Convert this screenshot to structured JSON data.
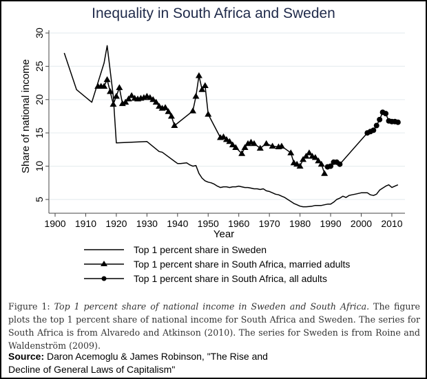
{
  "chart_data": {
    "type": "line",
    "title": "Inequality in South Africa and Sweden",
    "xlabel": "Year",
    "ylabel": "Share of national income",
    "xlim": [
      1898,
      2014
    ],
    "ylim": [
      3,
      31
    ],
    "xticks": [
      1900,
      1910,
      1920,
      1930,
      1940,
      1950,
      1960,
      1970,
      1980,
      1990,
      2000,
      2010
    ],
    "yticks": [
      5,
      10,
      15,
      20,
      25,
      30
    ],
    "grid": true,
    "legend_position": "bottom",
    "series": [
      {
        "name": "Top 1 percent share in Sweden",
        "marker": "none",
        "x": [
          1903,
          1907,
          1912,
          1916,
          1917,
          1919,
          1920,
          1930,
          1934,
          1935,
          1940,
          1941,
          1943,
          1944,
          1945,
          1946,
          1947,
          1948,
          1949,
          1950,
          1951,
          1952,
          1953,
          1954,
          1955,
          1956,
          1957,
          1958,
          1959,
          1960,
          1961,
          1962,
          1963,
          1964,
          1965,
          1966,
          1967,
          1968,
          1969,
          1970,
          1971,
          1972,
          1973,
          1974,
          1975,
          1976,
          1977,
          1978,
          1979,
          1980,
          1981,
          1982,
          1983,
          1984,
          1985,
          1986,
          1987,
          1988,
          1989,
          1990,
          1991,
          1992,
          1993,
          1994,
          1995,
          1996,
          1997,
          1998,
          1999,
          2000,
          2001,
          2002,
          2003,
          2004,
          2005,
          2006,
          2007,
          2008,
          2009,
          2010,
          2011,
          2012
        ],
        "y": [
          27,
          21.5,
          19.6,
          25.5,
          28.1,
          20.5,
          13.5,
          13.7,
          12.2,
          12.1,
          10.4,
          10.4,
          10.5,
          10.2,
          10.0,
          10.1,
          8.9,
          8.2,
          7.8,
          7.6,
          7.5,
          7.3,
          7.0,
          6.8,
          6.9,
          6.9,
          6.8,
          6.9,
          6.9,
          7.0,
          6.9,
          6.8,
          6.8,
          6.7,
          6.6,
          6.6,
          6.5,
          6.6,
          6.3,
          6.2,
          6.0,
          5.8,
          5.7,
          5.5,
          5.3,
          5.0,
          4.7,
          4.4,
          4.2,
          4.0,
          3.9,
          3.9,
          3.95,
          4.0,
          4.1,
          4.1,
          4.1,
          4.2,
          4.3,
          4.3,
          4.6,
          5.0,
          5.2,
          5.5,
          5.3,
          5.6,
          5.7,
          5.8,
          5.9,
          6.0,
          6.0,
          6.0,
          5.7,
          5.6,
          5.8,
          6.4,
          6.7,
          7.0,
          7.2,
          6.8,
          7.0,
          7.2
        ]
      },
      {
        "name": "Top 1 percent share in South Africa, married adults",
        "marker": "triangle",
        "x": [
          1914,
          1915,
          1916,
          1917,
          1918,
          1919,
          1920,
          1921,
          1922,
          1923,
          1924,
          1925,
          1926,
          1927,
          1928,
          1929,
          1930,
          1931,
          1932,
          1933,
          1934,
          1935,
          1936,
          1937,
          1938,
          1939,
          1945,
          1946,
          1947,
          1948,
          1949,
          1950,
          1954,
          1955,
          1956,
          1957,
          1958,
          1959,
          1961,
          1962,
          1963,
          1964,
          1965,
          1967,
          1969,
          1971,
          1973,
          1974,
          1977,
          1978,
          1979,
          1980,
          1981,
          1982,
          1983,
          1984,
          1985,
          1986,
          1987,
          1988
        ],
        "y": [
          22,
          22,
          22,
          23,
          21.2,
          19.3,
          20.5,
          21.8,
          19.4,
          19.6,
          20.1,
          20.6,
          20.2,
          20.1,
          20.2,
          20.3,
          20.5,
          20.3,
          20.0,
          19.6,
          19.0,
          18.7,
          18.8,
          18.2,
          17.5,
          16.1,
          18.3,
          20.5,
          23.6,
          21.5,
          22.1,
          17.8,
          14.3,
          14.4,
          14.0,
          13.7,
          13.2,
          12.8,
          11.9,
          12.8,
          13.4,
          13.6,
          13.4,
          12.7,
          13.4,
          13.0,
          12.9,
          13.0,
          12.0,
          10.5,
          10.3,
          10.0,
          11.0,
          11.5,
          12.0,
          11.5,
          11.3,
          10.8,
          10.3,
          8.9
        ]
      },
      {
        "name": "Top 1 percent share in South Africa, all adults",
        "marker": "circle",
        "x": [
          1989,
          1990,
          1991,
          1992,
          1993,
          2002,
          2003,
          2004,
          2005,
          2006,
          2007,
          2008,
          2009,
          2010,
          2011,
          2012
        ],
        "y": [
          9.9,
          10.0,
          10.6,
          10.6,
          10.3,
          15.0,
          15.2,
          15.4,
          16.1,
          17.0,
          18.1,
          17.9,
          16.8,
          16.7,
          16.7,
          16.6
        ]
      }
    ]
  },
  "caption": {
    "prefix": "Figure 1:",
    "italic": "Top 1 percent share of national income in Sweden and South Africa.",
    "body": "The figure plots the top 1 percent share of national income for South Africa and Sweden. The series for South Africa is from Alvaredo and Atkinson (2010). The series for Sweden is from Roine and Waldenström (2009)."
  },
  "source": {
    "label": "Source:",
    "text": "Daron Acemoglu & James Robinson, \"The Rise and Decline of General Laws of Capitalism\""
  },
  "colors": {
    "title": "#1f2a4a",
    "line": "#000000",
    "grid": "#e8eef0",
    "axis": "#444444"
  }
}
